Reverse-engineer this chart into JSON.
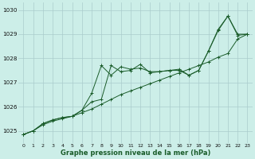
{
  "xlabel": "Graphe pression niveau de la mer (hPa)",
  "bg_color": "#cceee8",
  "grid_color": "#aacccc",
  "line_color": "#1a5c2a",
  "x": [
    0,
    1,
    2,
    3,
    4,
    5,
    6,
    7,
    8,
    9,
    10,
    11,
    12,
    13,
    14,
    15,
    16,
    17,
    18,
    19,
    20,
    21,
    22,
    23
  ],
  "line1": [
    1024.85,
    1025.0,
    1025.25,
    1025.4,
    1025.5,
    1025.6,
    1025.75,
    1025.9,
    1026.1,
    1026.3,
    1026.5,
    1026.65,
    1026.8,
    1026.95,
    1027.1,
    1027.25,
    1027.4,
    1027.55,
    1027.7,
    1027.85,
    1028.05,
    1028.2,
    1028.8,
    1029.0
  ],
  "line2": [
    1024.85,
    1025.0,
    1025.3,
    1025.45,
    1025.55,
    1025.6,
    1025.85,
    1026.55,
    1027.7,
    1027.3,
    1027.65,
    1027.55,
    1027.6,
    1027.45,
    1027.45,
    1027.5,
    1027.55,
    1027.3,
    1027.5,
    1028.3,
    1029.2,
    1029.75,
    1028.95,
    1029.0
  ],
  "line3": [
    1024.85,
    1025.0,
    1025.3,
    1025.45,
    1025.55,
    1025.6,
    1025.85,
    1026.2,
    1026.3,
    1027.7,
    1027.45,
    1027.5,
    1027.75,
    1027.4,
    1027.45,
    1027.5,
    1027.5,
    1027.3,
    1027.5,
    1028.3,
    1029.15,
    1029.75,
    1029.0,
    1029.0
  ],
  "ylim": [
    1024.5,
    1030.3
  ],
  "xlim": [
    -0.5,
    23.5
  ],
  "yticks": [
    1025,
    1026,
    1027,
    1028,
    1029,
    1030
  ],
  "xticks": [
    0,
    1,
    2,
    3,
    4,
    5,
    6,
    7,
    8,
    9,
    10,
    11,
    12,
    13,
    14,
    15,
    16,
    17,
    18,
    19,
    20,
    21,
    22,
    23
  ],
  "figsize": [
    3.2,
    2.0
  ],
  "dpi": 100
}
